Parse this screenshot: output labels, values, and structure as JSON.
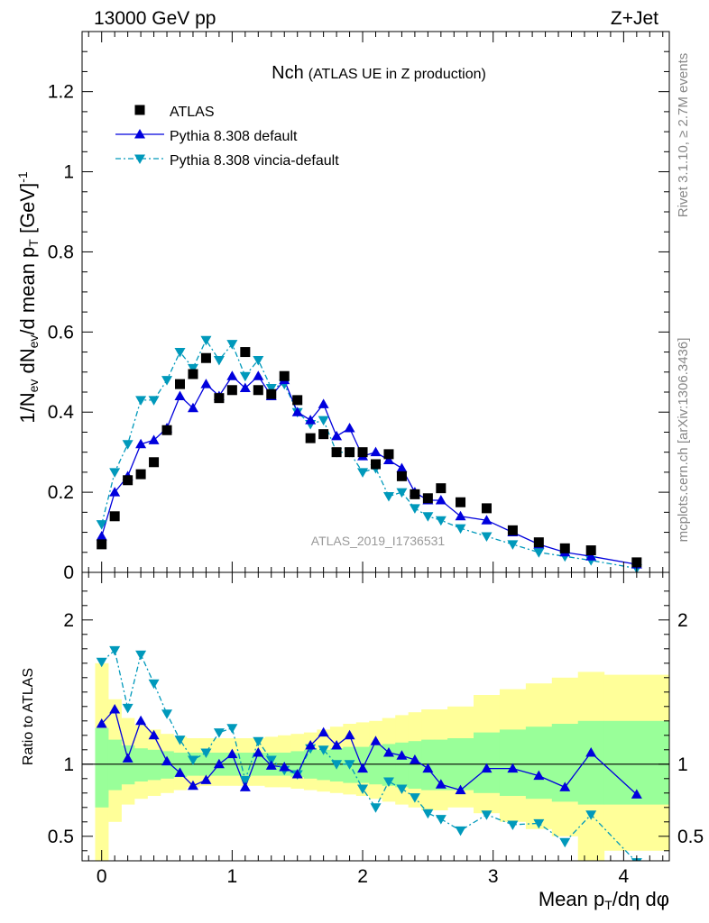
{
  "header": {
    "left": "13000 GeV pp",
    "right": "Z+Jet"
  },
  "side": {
    "rivet": "Rivet 3.1.10, ≥ 2.7M events",
    "mcplots": "mcplots.cern.ch [arXiv:1306.3436]"
  },
  "chart_data": [
    {
      "type": "scatter",
      "title_main": "Nch",
      "title_sub": "(ATLAS UE in Z production)",
      "ylabel": "1/N_ev dN_ev/d mean p_T [GeV]^-1",
      "ylim": [
        0,
        1.35
      ],
      "y_ticks": [
        "0",
        "0.2",
        "0.4",
        "0.6",
        "0.8",
        "1",
        "1.2"
      ],
      "watermark": "ATLAS_2019_I1736531",
      "legend_position": "top-left",
      "series": [
        {
          "name": "ATLAS",
          "style": "black-square-markers",
          "color": "#000000",
          "x": [
            0.0,
            0.1,
            0.2,
            0.3,
            0.4,
            0.5,
            0.6,
            0.7,
            0.8,
            0.9,
            1.0,
            1.1,
            1.2,
            1.3,
            1.4,
            1.5,
            1.6,
            1.7,
            1.8,
            1.9,
            2.0,
            2.1,
            2.2,
            2.3,
            2.4,
            2.5,
            2.6,
            2.75,
            2.95,
            3.15,
            3.35,
            3.55,
            3.75,
            4.1
          ],
          "values": [
            0.07,
            0.14,
            0.23,
            0.245,
            0.275,
            0.355,
            0.47,
            0.495,
            0.535,
            0.435,
            0.455,
            0.55,
            0.455,
            0.445,
            0.49,
            0.43,
            0.335,
            0.345,
            0.3,
            0.3,
            0.3,
            0.27,
            0.295,
            0.24,
            0.195,
            0.185,
            0.21,
            0.175,
            0.16,
            0.105,
            0.075,
            0.06,
            0.055,
            0.025
          ]
        },
        {
          "name": "Pythia 8.308 default",
          "style": "solid-line-up-triangles",
          "color": "#0000dd",
          "x": [
            0.0,
            0.1,
            0.2,
            0.3,
            0.4,
            0.5,
            0.6,
            0.7,
            0.8,
            0.9,
            1.0,
            1.1,
            1.2,
            1.3,
            1.4,
            1.5,
            1.6,
            1.7,
            1.8,
            1.9,
            2.0,
            2.1,
            2.2,
            2.3,
            2.4,
            2.5,
            2.6,
            2.75,
            2.95,
            3.15,
            3.35,
            3.55,
            3.75,
            4.1
          ],
          "values": [
            0.09,
            0.2,
            0.24,
            0.32,
            0.33,
            0.36,
            0.44,
            0.41,
            0.47,
            0.44,
            0.49,
            0.46,
            0.49,
            0.44,
            0.48,
            0.4,
            0.38,
            0.42,
            0.34,
            0.36,
            0.29,
            0.3,
            0.28,
            0.26,
            0.2,
            0.18,
            0.18,
            0.14,
            0.13,
            0.1,
            0.07,
            0.05,
            0.04,
            0.02
          ]
        },
        {
          "name": "Pythia 8.308 vincia-default",
          "style": "dash-dot-line-down-triangles",
          "color": "#0099bb",
          "x": [
            0.0,
            0.1,
            0.2,
            0.3,
            0.4,
            0.5,
            0.6,
            0.7,
            0.8,
            0.9,
            1.0,
            1.1,
            1.2,
            1.3,
            1.4,
            1.5,
            1.6,
            1.7,
            1.8,
            1.9,
            2.0,
            2.1,
            2.2,
            2.3,
            2.4,
            2.5,
            2.6,
            2.75,
            2.95,
            3.15,
            3.35,
            3.55,
            3.75,
            4.1
          ],
          "values": [
            0.12,
            0.25,
            0.32,
            0.43,
            0.43,
            0.48,
            0.55,
            0.51,
            0.58,
            0.53,
            0.57,
            0.49,
            0.53,
            0.46,
            0.47,
            0.4,
            0.37,
            0.38,
            0.3,
            0.3,
            0.25,
            0.26,
            0.19,
            0.2,
            0.16,
            0.14,
            0.13,
            0.11,
            0.09,
            0.07,
            0.05,
            0.04,
            0.03,
            0.01
          ]
        }
      ]
    },
    {
      "type": "line",
      "ylabel": "Ratio to ATLAS",
      "xlabel": "Mean p_T/dη dφ",
      "xlim": [
        -0.15,
        4.35
      ],
      "ylim": [
        0.33,
        2.33
      ],
      "x_ticks": [
        "0",
        "1",
        "2",
        "3",
        "4"
      ],
      "y_ticks": [
        "0.5",
        "1",
        "2"
      ],
      "reference_line": 1,
      "bands": {
        "edges": [
          -0.05,
          0.05,
          0.15,
          0.25,
          0.35,
          0.45,
          0.55,
          0.65,
          0.75,
          0.85,
          0.95,
          1.05,
          1.15,
          1.25,
          1.35,
          1.45,
          1.55,
          1.65,
          1.75,
          1.85,
          1.95,
          2.05,
          2.15,
          2.25,
          2.35,
          2.45,
          2.55,
          2.65,
          2.85,
          3.05,
          3.25,
          3.45,
          3.65,
          3.85,
          4.35
        ],
        "inner_color": "#99ff99",
        "outer_color": "#ffff99",
        "inner_lo": [
          0.7,
          0.82,
          0.86,
          0.88,
          0.89,
          0.9,
          0.91,
          0.92,
          0.92,
          0.92,
          0.92,
          0.92,
          0.92,
          0.92,
          0.92,
          0.91,
          0.9,
          0.89,
          0.88,
          0.87,
          0.87,
          0.86,
          0.85,
          0.84,
          0.83,
          0.82,
          0.82,
          0.82,
          0.8,
          0.78,
          0.76,
          0.74,
          0.72,
          0.72
        ],
        "inner_hi": [
          1.25,
          1.17,
          1.13,
          1.11,
          1.1,
          1.09,
          1.08,
          1.08,
          1.08,
          1.08,
          1.08,
          1.08,
          1.08,
          1.08,
          1.08,
          1.09,
          1.1,
          1.1,
          1.11,
          1.12,
          1.12,
          1.13,
          1.14,
          1.15,
          1.16,
          1.17,
          1.17,
          1.18,
          1.22,
          1.24,
          1.26,
          1.28,
          1.3,
          1.3
        ],
        "outer_lo": [
          0.3,
          0.6,
          0.72,
          0.76,
          0.78,
          0.8,
          0.82,
          0.84,
          0.85,
          0.85,
          0.85,
          0.85,
          0.85,
          0.84,
          0.84,
          0.83,
          0.82,
          0.81,
          0.8,
          0.79,
          0.78,
          0.76,
          0.74,
          0.72,
          0.7,
          0.68,
          0.68,
          0.7,
          0.66,
          0.6,
          0.55,
          0.5,
          0.33,
          0.4
        ],
        "outer_hi": [
          1.7,
          1.45,
          1.32,
          1.27,
          1.24,
          1.21,
          1.19,
          1.18,
          1.18,
          1.18,
          1.18,
          1.18,
          1.18,
          1.19,
          1.2,
          1.21,
          1.22,
          1.24,
          1.26,
          1.28,
          1.29,
          1.3,
          1.32,
          1.34,
          1.36,
          1.38,
          1.38,
          1.4,
          1.48,
          1.52,
          1.56,
          1.6,
          1.64,
          1.62
        ]
      },
      "series": [
        {
          "name": "Pythia 8.308 default",
          "color": "#0000dd",
          "x": [
            0.0,
            0.1,
            0.2,
            0.3,
            0.4,
            0.5,
            0.6,
            0.7,
            0.8,
            0.9,
            1.0,
            1.1,
            1.2,
            1.3,
            1.4,
            1.5,
            1.6,
            1.7,
            1.8,
            1.9,
            2.0,
            2.1,
            2.2,
            2.3,
            2.4,
            2.5,
            2.6,
            2.75,
            2.95,
            3.15,
            3.35,
            3.55,
            3.75,
            4.1
          ],
          "values": [
            1.28,
            1.38,
            1.04,
            1.3,
            1.2,
            1.02,
            0.94,
            0.85,
            0.89,
            1.0,
            1.07,
            0.84,
            1.08,
            0.99,
            0.98,
            0.93,
            1.13,
            1.22,
            1.13,
            1.2,
            0.97,
            1.16,
            1.08,
            1.06,
            1.03,
            0.97,
            0.86,
            0.82,
            0.97,
            0.97,
            0.92,
            0.84,
            1.08,
            0.79
          ]
        },
        {
          "name": "Pythia 8.308 vincia-default",
          "color": "#0099bb",
          "x": [
            0.0,
            0.1,
            0.2,
            0.3,
            0.4,
            0.5,
            0.6,
            0.7,
            0.8,
            0.9,
            1.0,
            1.1,
            1.2,
            1.3,
            1.4,
            1.5,
            1.6,
            1.7,
            1.8,
            1.9,
            2.0,
            2.1,
            2.2,
            2.3,
            2.4,
            2.5,
            2.6,
            2.75,
            2.95,
            3.15,
            3.35,
            3.55,
            3.75,
            4.1
          ],
          "values": [
            1.71,
            1.79,
            1.39,
            1.76,
            1.56,
            1.35,
            1.17,
            1.03,
            1.08,
            1.22,
            1.25,
            0.89,
            1.16,
            1.03,
            0.96,
            0.93,
            1.11,
            1.1,
            1.0,
            1.0,
            0.83,
            0.7,
            0.88,
            0.83,
            0.77,
            0.66,
            0.62,
            0.54,
            0.65,
            0.58,
            0.59,
            0.46,
            0.65,
            0.32
          ]
        }
      ]
    }
  ]
}
